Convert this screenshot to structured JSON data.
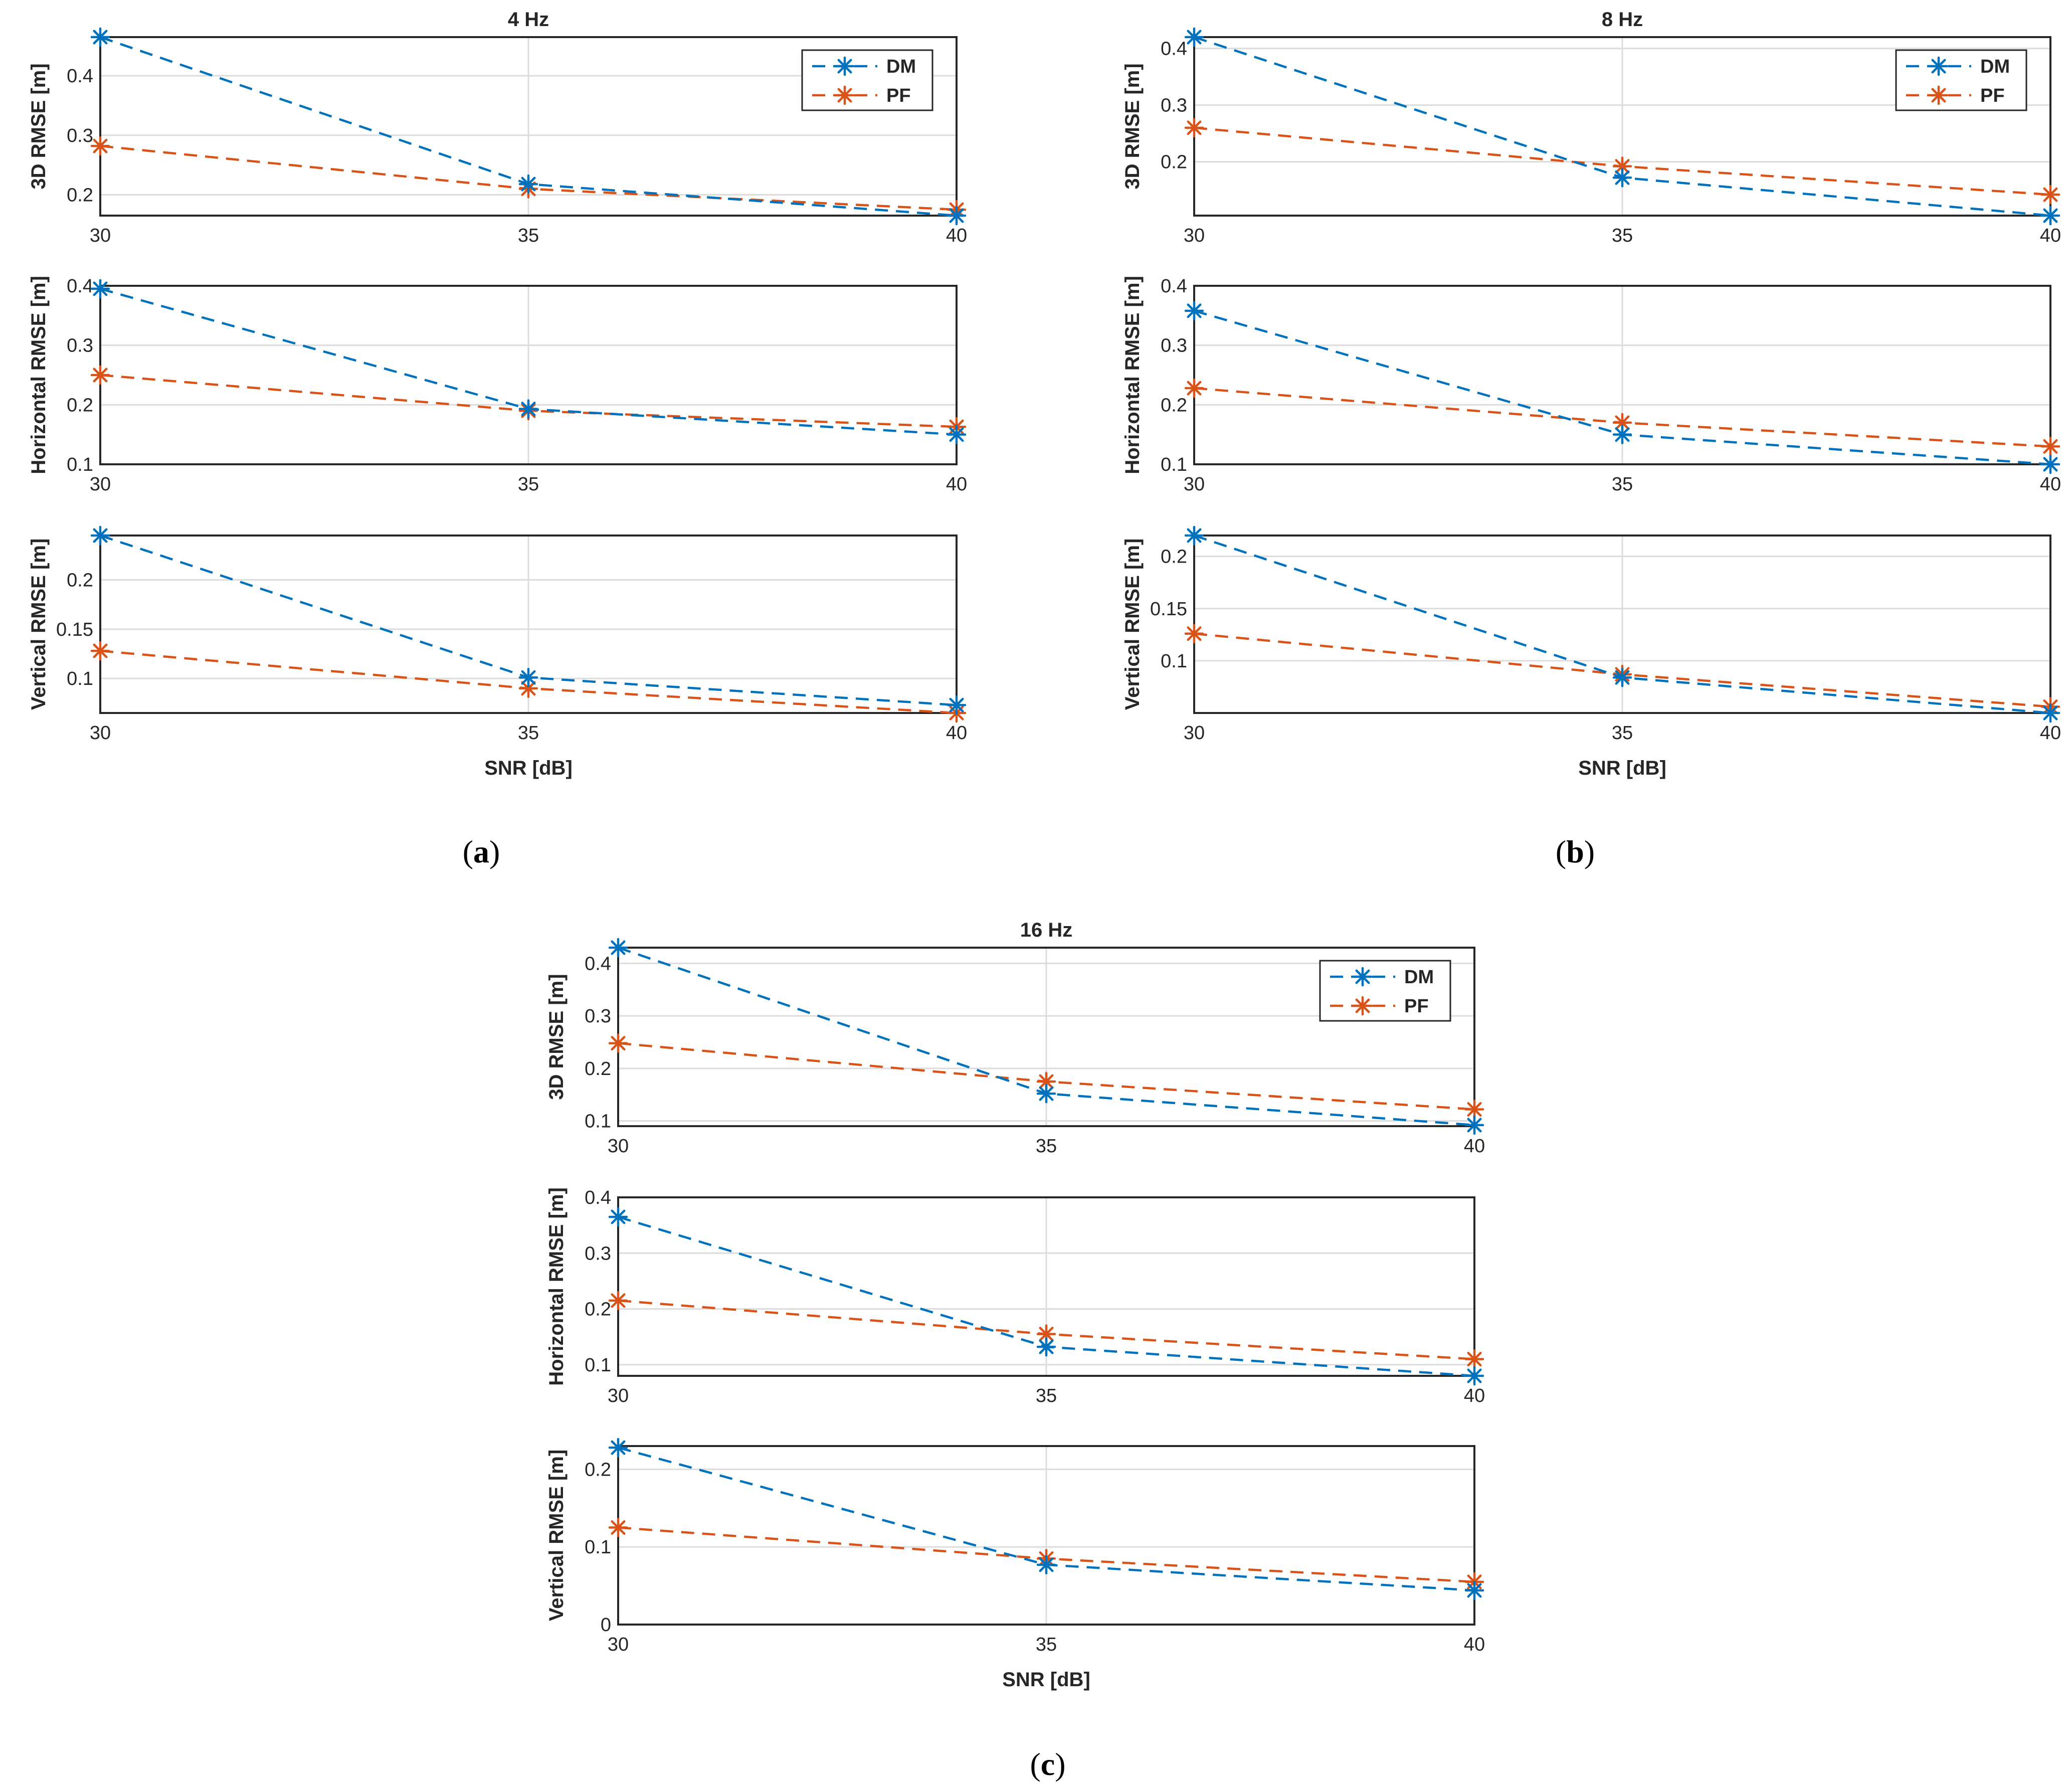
{
  "figure": {
    "panel_labels": [
      {
        "open": "(",
        "letter": "a",
        "close": ")"
      },
      {
        "open": "(",
        "letter": "b",
        "close": ")"
      },
      {
        "open": "(",
        "letter": "c",
        "close": ")"
      }
    ]
  },
  "colors": {
    "DM": "#0072BD",
    "PF": "#D95319",
    "grid": "#dcdcdc",
    "axis": "#262626"
  },
  "chart_data": [
    {
      "panel": "a",
      "title": "4 Hz",
      "type": "line",
      "xlabel": "SNR [dB]",
      "x": [
        30,
        35,
        40
      ],
      "xticks": [
        "30",
        "35",
        "40"
      ],
      "legend": [
        "DM",
        "PF"
      ],
      "legend_position": "top-right",
      "grid": true,
      "subplots": [
        {
          "ylabel": "3D RMSE [m]",
          "ylim": [
            0.165,
            0.465
          ],
          "yticks": [
            0.2,
            0.3,
            0.4
          ],
          "ytick_labels": [
            "0.2",
            "0.3",
            "0.4"
          ],
          "series": [
            {
              "name": "DM",
              "values": [
                0.465,
                0.218,
                0.165
              ]
            },
            {
              "name": "PF",
              "values": [
                0.282,
                0.21,
                0.175
              ]
            }
          ]
        },
        {
          "ylabel": "Horizontal RMSE [m]",
          "ylim": [
            0.1,
            0.4
          ],
          "yticks": [
            0.1,
            0.2,
            0.3,
            0.4
          ],
          "ytick_labels": [
            "0.1",
            "0.2",
            "0.3",
            "0.4"
          ],
          "series": [
            {
              "name": "DM",
              "values": [
                0.395,
                0.193,
                0.15
              ]
            },
            {
              "name": "PF",
              "values": [
                0.25,
                0.19,
                0.163
              ]
            }
          ]
        },
        {
          "ylabel": "Vertical RMSE [m]",
          "ylim": [
            0.065,
            0.245
          ],
          "yticks": [
            0.1,
            0.15,
            0.2
          ],
          "ytick_labels": [
            "0.1",
            "0.15",
            "0.2"
          ],
          "series": [
            {
              "name": "DM",
              "values": [
                0.245,
                0.101,
                0.073
              ]
            },
            {
              "name": "PF",
              "values": [
                0.128,
                0.09,
                0.065
              ]
            }
          ]
        }
      ]
    },
    {
      "panel": "b",
      "title": "8 Hz",
      "type": "line",
      "xlabel": "SNR [dB]",
      "x": [
        30,
        35,
        40
      ],
      "xticks": [
        "30",
        "35",
        "40"
      ],
      "legend": [
        "DM",
        "PF"
      ],
      "legend_position": "top-right",
      "grid": true,
      "subplots": [
        {
          "ylabel": "3D RMSE [m]",
          "ylim": [
            0.105,
            0.42
          ],
          "yticks": [
            0.2,
            0.3,
            0.4
          ],
          "ytick_labels": [
            "0.2",
            "0.3",
            "0.4"
          ],
          "series": [
            {
              "name": "DM",
              "values": [
                0.42,
                0.172,
                0.105
              ]
            },
            {
              "name": "PF",
              "values": [
                0.26,
                0.192,
                0.142
              ]
            }
          ]
        },
        {
          "ylabel": "Horizontal RMSE [m]",
          "ylim": [
            0.1,
            0.4
          ],
          "yticks": [
            0.1,
            0.2,
            0.3,
            0.4
          ],
          "ytick_labels": [
            "0.1",
            "0.2",
            "0.3",
            "0.4"
          ],
          "series": [
            {
              "name": "DM",
              "values": [
                0.358,
                0.15,
                0.1
              ]
            },
            {
              "name": "PF",
              "values": [
                0.228,
                0.17,
                0.13
              ]
            }
          ]
        },
        {
          "ylabel": "Vertical RMSE [m]",
          "ylim": [
            0.05,
            0.22
          ],
          "yticks": [
            0.1,
            0.15,
            0.2
          ],
          "ytick_labels": [
            "0.1",
            "0.15",
            "0.2"
          ],
          "series": [
            {
              "name": "DM",
              "values": [
                0.22,
                0.084,
                0.05
              ]
            },
            {
              "name": "PF",
              "values": [
                0.126,
                0.087,
                0.056
              ]
            }
          ]
        }
      ]
    },
    {
      "panel": "c",
      "title": "16 Hz",
      "type": "line",
      "xlabel": "SNR [dB]",
      "x": [
        30,
        35,
        40
      ],
      "xticks": [
        "30",
        "35",
        "40"
      ],
      "legend": [
        "DM",
        "PF"
      ],
      "legend_position": "top-right",
      "grid": true,
      "subplots": [
        {
          "ylabel": "3D RMSE [m]",
          "ylim": [
            0.09,
            0.43
          ],
          "yticks": [
            0.1,
            0.2,
            0.3,
            0.4
          ],
          "ytick_labels": [
            "0.1",
            "0.2",
            "0.3",
            "0.4"
          ],
          "series": [
            {
              "name": "DM",
              "values": [
                0.43,
                0.152,
                0.092
              ]
            },
            {
              "name": "PF",
              "values": [
                0.248,
                0.175,
                0.122
              ]
            }
          ]
        },
        {
          "ylabel": "Horizontal RMSE [m]",
          "ylim": [
            0.08,
            0.4
          ],
          "yticks": [
            0.1,
            0.2,
            0.3,
            0.4
          ],
          "ytick_labels": [
            "0.1",
            "0.2",
            "0.3",
            "0.4"
          ],
          "series": [
            {
              "name": "DM",
              "values": [
                0.365,
                0.132,
                0.08
              ]
            },
            {
              "name": "PF",
              "values": [
                0.215,
                0.155,
                0.11
              ]
            }
          ]
        },
        {
          "ylabel": "Vertical RMSE [m]",
          "ylim": [
            0,
            0.23
          ],
          "yticks": [
            0,
            0.1,
            0.2
          ],
          "ytick_labels": [
            "0",
            "0.1",
            "0.2"
          ],
          "series": [
            {
              "name": "DM",
              "values": [
                0.228,
                0.077,
                0.044
              ]
            },
            {
              "name": "PF",
              "values": [
                0.125,
                0.085,
                0.055
              ]
            }
          ]
        }
      ]
    }
  ]
}
